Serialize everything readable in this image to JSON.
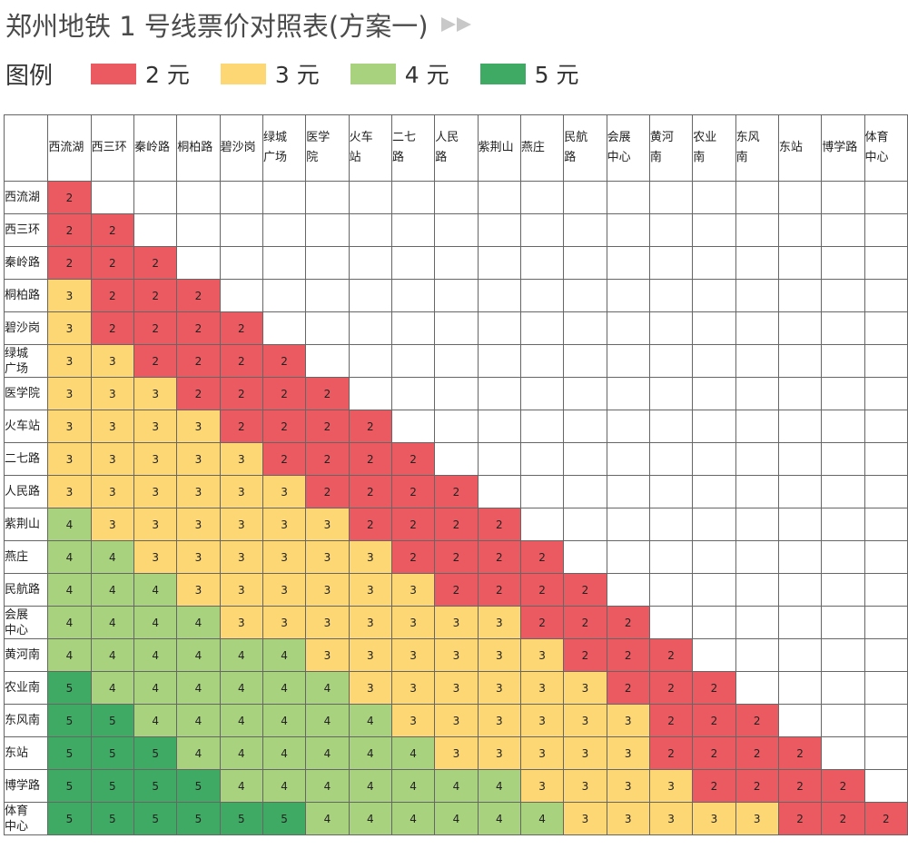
{
  "title": "郑州地铁 1 号线票价对照表(方案一)",
  "legend": {
    "title": "图例",
    "items": [
      {
        "label": "2 元",
        "fare": 2,
        "color": "#eb5a60"
      },
      {
        "label": "3 元",
        "fare": 3,
        "color": "#fcd773"
      },
      {
        "label": "4 元",
        "fare": 4,
        "color": "#a8d27e"
      },
      {
        "label": "5 元",
        "fare": 5,
        "color": "#3faa63"
      }
    ]
  },
  "table": {
    "columns": [
      "西流湖",
      "西三环",
      "秦岭路",
      "桐柏路",
      "碧沙岗",
      "绿城\n广场",
      "医学\n院",
      "火车\n站",
      "二七\n路",
      "人民\n路",
      "紫荆山",
      "燕庄",
      "民航\n路",
      "会展\n中心",
      "黄河\n南",
      "农业\n南",
      "东风\n南",
      "东站",
      "博学路",
      "体育\n中心"
    ],
    "rows": [
      {
        "label": "西流湖",
        "fares": [
          2
        ]
      },
      {
        "label": "西三环",
        "fares": [
          2,
          2
        ]
      },
      {
        "label": "秦岭路",
        "fares": [
          2,
          2,
          2
        ]
      },
      {
        "label": "桐柏路",
        "fares": [
          3,
          2,
          2,
          2
        ]
      },
      {
        "label": "碧沙岗",
        "fares": [
          3,
          2,
          2,
          2,
          2
        ]
      },
      {
        "label": "绿城\n广场",
        "fares": [
          3,
          3,
          2,
          2,
          2,
          2
        ]
      },
      {
        "label": "医学院",
        "fares": [
          3,
          3,
          3,
          2,
          2,
          2,
          2
        ]
      },
      {
        "label": "火车站",
        "fares": [
          3,
          3,
          3,
          3,
          2,
          2,
          2,
          2
        ]
      },
      {
        "label": "二七路",
        "fares": [
          3,
          3,
          3,
          3,
          3,
          2,
          2,
          2,
          2
        ]
      },
      {
        "label": "人民路",
        "fares": [
          3,
          3,
          3,
          3,
          3,
          3,
          2,
          2,
          2,
          2
        ]
      },
      {
        "label": "紫荆山",
        "fares": [
          4,
          3,
          3,
          3,
          3,
          3,
          3,
          2,
          2,
          2,
          2
        ]
      },
      {
        "label": "燕庄",
        "fares": [
          4,
          4,
          3,
          3,
          3,
          3,
          3,
          3,
          2,
          2,
          2,
          2
        ]
      },
      {
        "label": "民航路",
        "fares": [
          4,
          4,
          4,
          3,
          3,
          3,
          3,
          3,
          3,
          2,
          2,
          2,
          2
        ]
      },
      {
        "label": "会展\n中心",
        "fares": [
          4,
          4,
          4,
          4,
          3,
          3,
          3,
          3,
          3,
          3,
          3,
          2,
          2,
          2
        ]
      },
      {
        "label": "黄河南",
        "fares": [
          4,
          4,
          4,
          4,
          4,
          4,
          3,
          3,
          3,
          3,
          3,
          3,
          2,
          2,
          2
        ]
      },
      {
        "label": "农业南",
        "fares": [
          5,
          4,
          4,
          4,
          4,
          4,
          4,
          3,
          3,
          3,
          3,
          3,
          3,
          2,
          2,
          2
        ]
      },
      {
        "label": "东风南",
        "fares": [
          5,
          5,
          4,
          4,
          4,
          4,
          4,
          4,
          3,
          3,
          3,
          3,
          3,
          3,
          2,
          2,
          2
        ]
      },
      {
        "label": "东站",
        "fares": [
          5,
          5,
          5,
          4,
          4,
          4,
          4,
          4,
          4,
          3,
          3,
          3,
          3,
          3,
          2,
          2,
          2,
          2
        ]
      },
      {
        "label": "博学路",
        "fares": [
          5,
          5,
          5,
          5,
          4,
          4,
          4,
          4,
          4,
          4,
          4,
          3,
          3,
          3,
          3,
          2,
          2,
          2,
          2
        ]
      },
      {
        "label": "体育\n中心",
        "fares": [
          5,
          5,
          5,
          5,
          5,
          5,
          4,
          4,
          4,
          4,
          4,
          4,
          3,
          3,
          3,
          3,
          3,
          2,
          2,
          2
        ]
      }
    ]
  }
}
